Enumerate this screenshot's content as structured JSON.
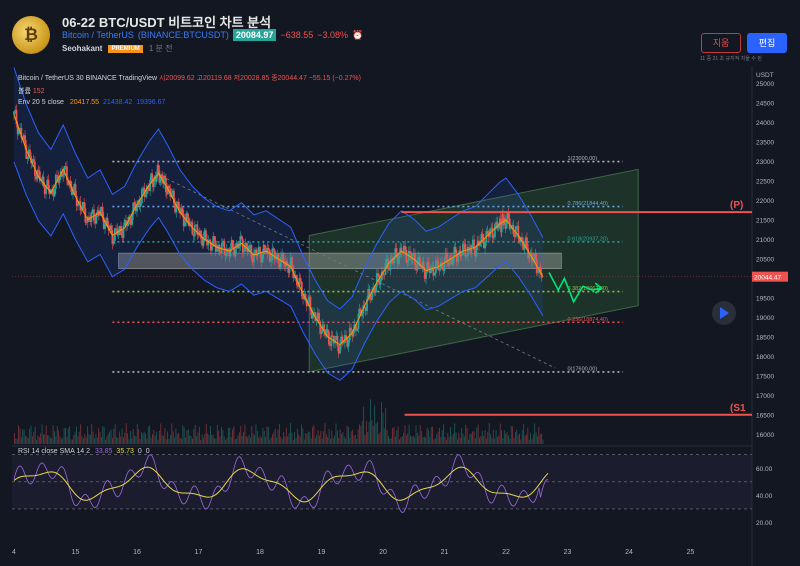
{
  "header": {
    "avatar_letter": "₿",
    "title": "06-22 BTC/USDT 비트코인 차트 분석",
    "symbol": "Bitcoin / TetherUS",
    "exchange": "(BINANCE:BTCUSDT)",
    "price": "20084.97",
    "change": "−638.55",
    "change_pct": "−3.08%",
    "author": "Seohakant",
    "badge": "PREMIUM",
    "time_ago": "1 분 전",
    "delete_label": "지움",
    "edit_label": "편집",
    "hint": "11 중 21 초 규지적 지울 수 된"
  },
  "colors": {
    "up": "#26a69a",
    "down": "#ef5350",
    "accent": "#2962ff",
    "rsi": "#9c6ade",
    "rsi_ma": "#e6d94a"
  },
  "chart_data": [
    {
      "type": "candlestick",
      "legend": {
        "line1": "Bitcoin / TetherUS  30  BINANCE  TradingView",
        "ohlc": "시20099.62  고20119.68  저20028.85  종20044.47  −55.15 (−0.27%)",
        "volume_label": "볼륨",
        "volume_value": "152",
        "env_label": "Env 20 5 close",
        "env_values": [
          "20417.55",
          "21438.42",
          "19396.67"
        ]
      },
      "yaxis_label": "USDT",
      "y_ticks": [
        16000,
        16500,
        17000,
        17500,
        18000,
        18500,
        19000,
        19500,
        20000,
        20500,
        21000,
        21500,
        22000,
        22500,
        23000,
        23500,
        24000,
        24500,
        25000
      ],
      "ylim": [
        15750,
        25400
      ],
      "x_ticks": [
        "4",
        "15",
        "16",
        "17",
        "18",
        "19",
        "20",
        "21",
        "22",
        "23",
        "24",
        "25"
      ],
      "current_price_tag": "20044.47",
      "close_path": [
        [
          14.0,
          24200
        ],
        [
          14.2,
          23300
        ],
        [
          14.4,
          22600
        ],
        [
          14.6,
          22200
        ],
        [
          14.8,
          22800
        ],
        [
          15.0,
          22100
        ],
        [
          15.2,
          21500
        ],
        [
          15.4,
          21700
        ],
        [
          15.6,
          21100
        ],
        [
          15.8,
          21300
        ],
        [
          16.0,
          21900
        ],
        [
          16.2,
          22400
        ],
        [
          16.35,
          22700
        ],
        [
          16.5,
          22300
        ],
        [
          16.7,
          21700
        ],
        [
          16.9,
          21300
        ],
        [
          17.1,
          21000
        ],
        [
          17.3,
          20800
        ],
        [
          17.5,
          20700
        ],
        [
          17.7,
          20900
        ],
        [
          17.9,
          20600
        ],
        [
          18.1,
          20700
        ],
        [
          18.3,
          20500
        ],
        [
          18.5,
          20300
        ],
        [
          18.7,
          19600
        ],
        [
          18.9,
          19000
        ],
        [
          19.1,
          18500
        ],
        [
          19.3,
          18300
        ],
        [
          19.5,
          18600
        ],
        [
          19.7,
          19300
        ],
        [
          19.9,
          19900
        ],
        [
          20.1,
          20400
        ],
        [
          20.3,
          20700
        ],
        [
          20.5,
          20500
        ],
        [
          20.7,
          20200
        ],
        [
          20.9,
          20300
        ],
        [
          21.1,
          20500
        ],
        [
          21.3,
          20700
        ],
        [
          21.5,
          20800
        ],
        [
          21.7,
          21100
        ],
        [
          21.9,
          21400
        ],
        [
          22.0,
          21500
        ],
        [
          22.2,
          21100
        ],
        [
          22.4,
          20600
        ],
        [
          22.6,
          20044
        ]
      ],
      "annotations": {
        "fib_levels": [
          {
            "ratio": "1",
            "value": 23000,
            "text": "1(23000.00)",
            "color": "#b2b5be"
          },
          {
            "ratio": "0.786",
            "value": 21844.4,
            "text": "0.786(21844.40)",
            "color": "#6fa8dc"
          },
          {
            "ratio": "0.618",
            "value": 20937.2,
            "text": "0.618(20937.20)",
            "color": "#26a69a"
          },
          {
            "ratio": "0.382",
            "value": 19662.8,
            "text": "0.382(19662.80)",
            "color": "#8bc34a"
          },
          {
            "ratio": "0.236",
            "value": 18874.4,
            "text": "0.236(18874.40)",
            "color": "#ef5350"
          },
          {
            "ratio": "0",
            "value": 17600,
            "text": "0(17600.00)",
            "color": "#b2b5be"
          }
        ],
        "resistance_label": "(P)",
        "resistance_value": 21700,
        "support_label": "(S1",
        "support_value": 16500
      }
    },
    {
      "type": "line",
      "legend": "RSI 14 close SMA 14 2",
      "legend_values": [
        "33.85",
        "35.73",
        "0",
        "0"
      ],
      "y_ticks": [
        20,
        40,
        60
      ],
      "ylim": [
        10,
        72
      ],
      "band": [
        30,
        70
      ]
    }
  ]
}
